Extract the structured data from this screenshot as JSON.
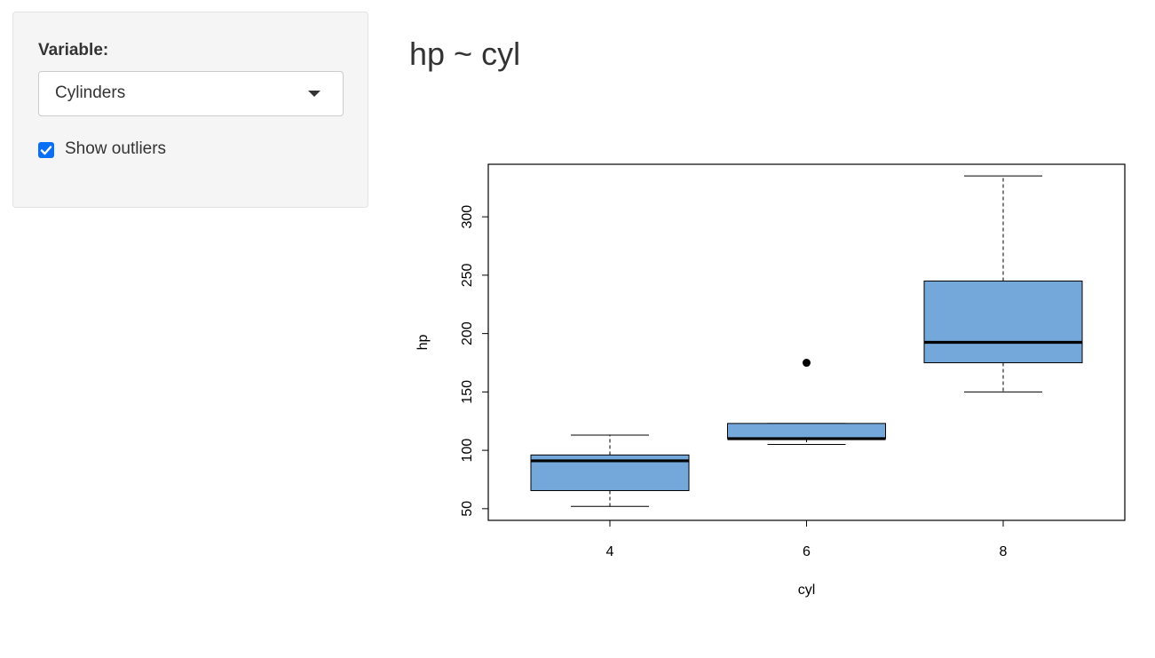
{
  "sidebar": {
    "variable_label": "Variable:",
    "variable_select": {
      "selected": "Cylinders"
    },
    "outliers_checkbox": {
      "label": "Show outliers",
      "checked": true
    }
  },
  "main": {
    "title": "hp ~ cyl"
  },
  "colors": {
    "box_fill": "#74a8da",
    "checkbox_accent": "#0b6ef7",
    "panel_bg": "#f5f5f5"
  },
  "chart_data": {
    "type": "box",
    "xlabel": "cyl",
    "ylabel": "hp",
    "categories": [
      "4",
      "6",
      "8"
    ],
    "yticks": [
      50,
      100,
      150,
      200,
      250,
      300
    ],
    "ylim": [
      40,
      345
    ],
    "boxes": [
      {
        "category": "4",
        "whisker_low": 52,
        "q1": 65.5,
        "median": 91,
        "q3": 96,
        "whisker_high": 113,
        "outliers": []
      },
      {
        "category": "6",
        "whisker_low": 105,
        "q1": 110,
        "median": 110,
        "q3": 123,
        "whisker_high": 123,
        "outliers": [
          175
        ]
      },
      {
        "category": "8",
        "whisker_low": 150,
        "q1": 175,
        "median": 192.5,
        "q3": 245,
        "whisker_high": 335,
        "outliers": []
      }
    ],
    "grid": false,
    "legend": "none"
  }
}
